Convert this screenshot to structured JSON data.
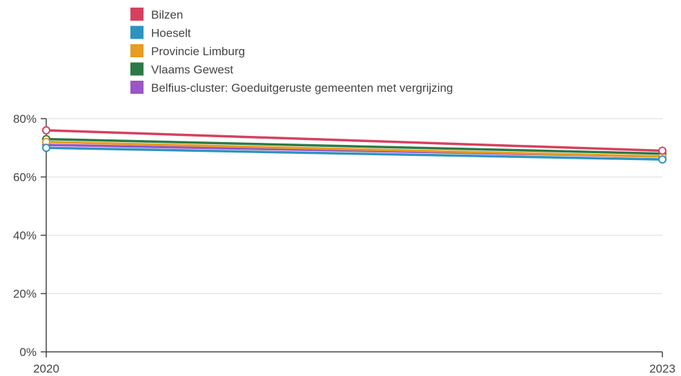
{
  "chart_data": {
    "type": "line",
    "title": "",
    "xlabel": "",
    "ylabel": "",
    "x": [
      2020,
      2023
    ],
    "x_tick_labels": [
      "2020",
      "2023"
    ],
    "ylim": [
      0,
      80
    ],
    "y_ticks": [
      0,
      20,
      40,
      60,
      80
    ],
    "y_tick_labels": [
      "0%",
      "20%",
      "40%",
      "60%",
      "80%"
    ],
    "grid": true,
    "legend_position": "top-left",
    "series": [
      {
        "name": "Bilzen",
        "color": "#d6405f",
        "values": [
          76,
          69
        ]
      },
      {
        "name": "Hoeselt",
        "color": "#2e93c0",
        "values": [
          70,
          66
        ]
      },
      {
        "name": "Provincie Limburg",
        "color": "#e89c22",
        "values": [
          72,
          67
        ]
      },
      {
        "name": "Vlaams Gewest",
        "color": "#2b7a45",
        "values": [
          73,
          68
        ]
      },
      {
        "name": "Belfius-cluster: Goeduitgeruste gemeenten met vergrijzing",
        "color": "#9b55c6",
        "values": [
          71,
          67
        ]
      }
    ]
  }
}
